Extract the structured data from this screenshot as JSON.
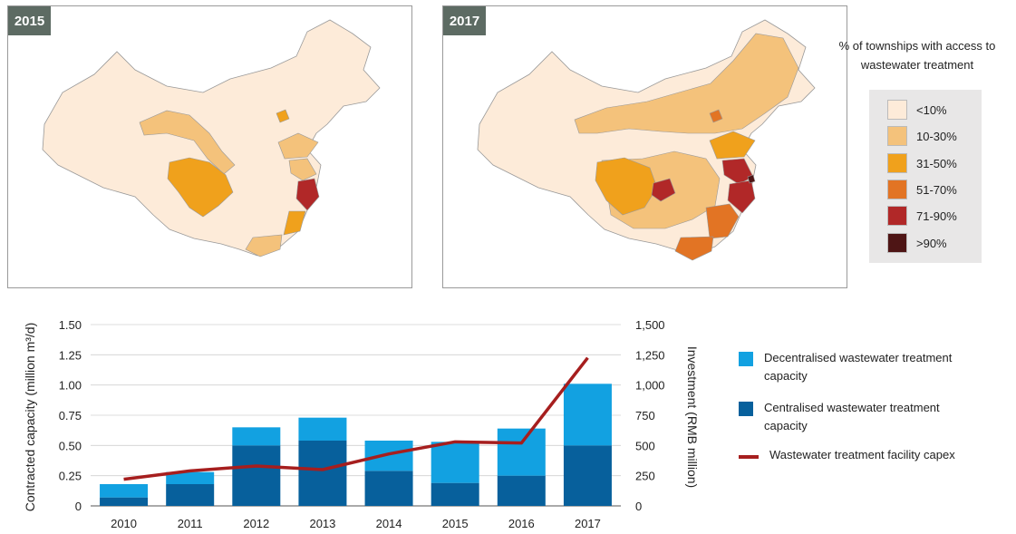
{
  "maps": [
    {
      "year": "2015"
    },
    {
      "year": "2017"
    }
  ],
  "map_legend": {
    "title": "% of townships with access to wastewater treatment",
    "items": [
      {
        "label": "<10%",
        "color": "#fdebd9"
      },
      {
        "label": "10-30%",
        "color": "#f4c27b"
      },
      {
        "label": "31-50%",
        "color": "#f0a11c"
      },
      {
        "label": "51-70%",
        "color": "#e27424"
      },
      {
        "label": "71-90%",
        "color": "#b12828"
      },
      {
        "label": ">90%",
        "color": "#4e1515"
      }
    ]
  },
  "chart_data": {
    "type": "bar",
    "stacked": true,
    "categories": [
      "2010",
      "2011",
      "2012",
      "2013",
      "2014",
      "2015",
      "2016",
      "2017"
    ],
    "series": [
      {
        "name": "Centralised wastewater treatment capacity",
        "axis": "left",
        "color": "#07609c",
        "values": [
          0.07,
          0.18,
          0.5,
          0.54,
          0.29,
          0.19,
          0.25,
          0.5
        ]
      },
      {
        "name": "Decentralised wastewater treatment capacity",
        "axis": "left",
        "color": "#12a1e1",
        "values": [
          0.11,
          0.1,
          0.15,
          0.19,
          0.25,
          0.34,
          0.39,
          0.51
        ]
      },
      {
        "name": "Wastewater treatment facility capex",
        "type": "line",
        "axis": "right",
        "color": "#a61e1e",
        "values": [
          220,
          290,
          330,
          300,
          430,
          530,
          520,
          1225
        ]
      }
    ],
    "ylabel": "Contracted capacity (million m³/d)",
    "y2label": "Investment (RMB million)",
    "ylim": [
      0,
      1.5
    ],
    "y2lim": [
      0,
      1500
    ],
    "yticks": [
      "0",
      "0.25",
      "0.50",
      "0.75",
      "1.00",
      "1.25",
      "1.50"
    ],
    "y2ticks": [
      "0",
      "250",
      "500",
      "750",
      "1,000",
      "1,250",
      "1,500"
    ],
    "grid": true
  }
}
